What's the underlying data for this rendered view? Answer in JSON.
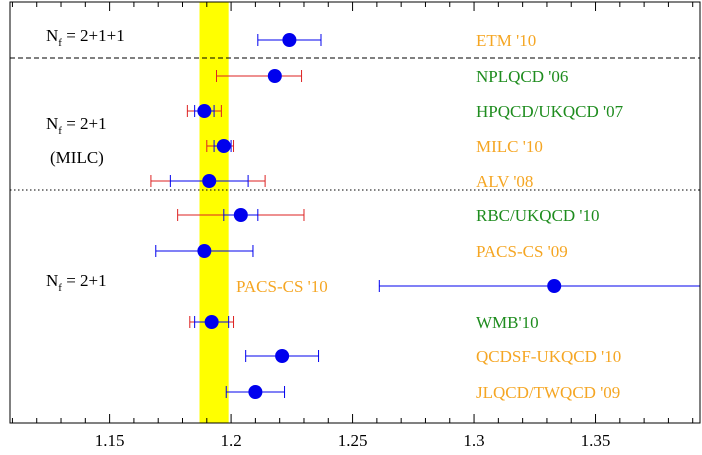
{
  "chart_data": {
    "type": "scatter",
    "title": "",
    "xlabel": "",
    "ylabel": "",
    "xlim": [
      1.109,
      1.393
    ],
    "xticks": [
      1.15,
      1.2,
      1.25,
      1.3,
      1.35
    ],
    "xtick_labels": [
      "1.15",
      "1.2",
      "1.25",
      "1.3",
      "1.35"
    ],
    "grid": false,
    "colors": {
      "orange": "#f5a623",
      "green": "#1e8c1e",
      "blue": "#0000ee",
      "red": "#dd2222",
      "band": "#ffff00",
      "marker": "#0000ee"
    },
    "band": {
      "xmin": 1.187,
      "xmax": 1.199
    },
    "groups": [
      {
        "label_main": "N",
        "label_sub": "f",
        "label_rest": " = 2+1+1",
        "extra": ""
      },
      {
        "label_main": "N",
        "label_sub": "f",
        "label_rest": " = 2+1",
        "extra": "(MILC)"
      },
      {
        "label_main": "N",
        "label_sub": "f",
        "label_rest": " = 2+1",
        "extra": ""
      }
    ],
    "separators": [
      {
        "after_row": 0,
        "style": "dashed"
      },
      {
        "after_row": 4,
        "style": "dotted"
      }
    ],
    "points": [
      {
        "label": "ETM '10",
        "label_color": "orange",
        "value": 1.224,
        "stat": [
          1.211,
          1.237
        ],
        "total": null
      },
      {
        "label": "NPLQCD '06",
        "label_color": "green",
        "value": 1.218,
        "stat": [
          1.218,
          1.218
        ],
        "total": [
          1.194,
          1.229
        ]
      },
      {
        "label": "HPQCD/UKQCD '07",
        "label_color": "green",
        "value": 1.189,
        "stat": [
          1.185,
          1.193
        ],
        "total": [
          1.182,
          1.196
        ]
      },
      {
        "label": "MILC '10",
        "label_color": "orange",
        "value": 1.197,
        "stat": [
          1.193,
          1.2
        ],
        "total": [
          1.19,
          1.201
        ]
      },
      {
        "label": "ALV '08",
        "label_color": "orange",
        "value": 1.191,
        "stat": [
          1.175,
          1.207
        ],
        "total": [
          1.167,
          1.214
        ]
      },
      {
        "label": "RBC/UKQCD '10",
        "label_color": "green",
        "value": 1.204,
        "stat": [
          1.197,
          1.211
        ],
        "total": [
          1.178,
          1.23
        ]
      },
      {
        "label": "PACS-CS '09",
        "label_color": "orange",
        "value": 1.189,
        "stat": [
          1.169,
          1.209
        ],
        "total": null
      },
      {
        "label": "PACS-CS '10",
        "label_color": "orange",
        "value": 1.333,
        "stat": [
          1.261,
          1.405
        ],
        "total": null
      },
      {
        "label": "WMB'10",
        "label_color": "green",
        "value": 1.192,
        "stat": [
          1.185,
          1.199
        ],
        "total": [
          1.183,
          1.201
        ]
      },
      {
        "label": "QCDSF-UKQCD '10",
        "label_color": "orange",
        "value": 1.221,
        "stat": [
          1.206,
          1.236
        ],
        "total": null
      },
      {
        "label": "JLQCD/TWQCD '09",
        "label_color": "orange",
        "value": 1.21,
        "stat": [
          1.198,
          1.222
        ],
        "total": null
      }
    ]
  }
}
